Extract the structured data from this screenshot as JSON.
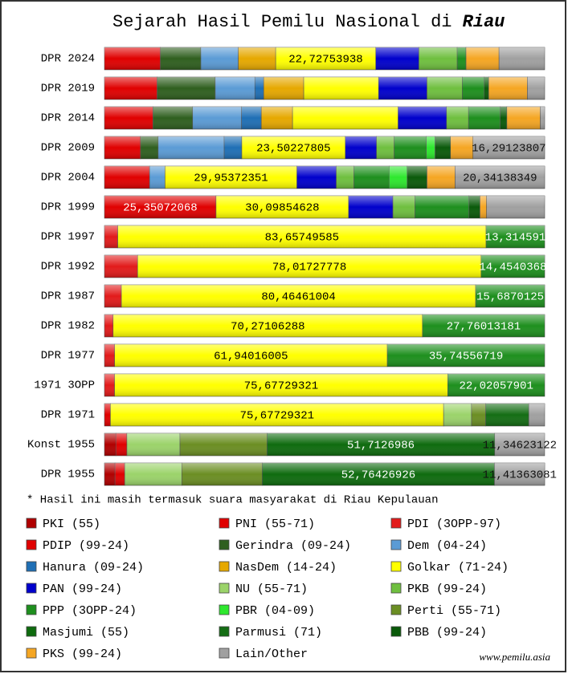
{
  "chart_data": {
    "type": "stacked-bar-horizontal",
    "title": "Sejarah Hasil Pemilu Nasional di",
    "title_region": "Riau",
    "footnote": "* Hasil ini masih termasuk suara masyarakat di Riau Kepulauan",
    "source": "www.pemilu.asia",
    "xlim": [
      0,
      100
    ],
    "categories": [
      "DPR 2024",
      "DPR 2019",
      "DPR 2014",
      "DPR 2009",
      "DPR 2004",
      "DPR 1999",
      "DPR 1997",
      "DPR 1992",
      "DPR 1987",
      "DPR 1982",
      "DPR 1977",
      "1971 3OPP",
      "DPR 1971",
      "Konst 1955",
      "DPR 1955"
    ],
    "series": [
      {
        "name": "PKI (55)",
        "color": "#b00000",
        "values": [
          null,
          null,
          null,
          null,
          null,
          null,
          null,
          null,
          null,
          null,
          null,
          null,
          null,
          2.6,
          2.4
        ]
      },
      {
        "name": "PNI (55-71)",
        "color": "#e00000",
        "values": [
          null,
          null,
          null,
          null,
          null,
          null,
          null,
          null,
          null,
          null,
          null,
          null,
          1.36,
          2.5,
          2.2
        ]
      },
      {
        "name": "PDI (3OPP-97)",
        "color": "#e21b1b",
        "values": [
          null,
          null,
          null,
          null,
          null,
          null,
          3.03,
          7.53,
          3.85,
          1.97,
          2.31,
          2.3,
          null,
          null,
          null
        ]
      },
      {
        "name": "PDIP (99-24)",
        "color": "#e00000",
        "values": [
          12.7,
          11.97,
          11.03,
          8.2,
          10.26,
          25.35072068,
          null,
          null,
          null,
          null,
          null,
          null,
          null,
          null,
          null
        ],
        "value_labels": [
          null,
          null,
          null,
          null,
          null,
          "25,35072068",
          null,
          null,
          null,
          null,
          null,
          null,
          null,
          null,
          null
        ]
      },
      {
        "name": "Gerindra (09-24)",
        "color": "#2f5f1f",
        "values": [
          9.2,
          13.2,
          9,
          4,
          null,
          null,
          null,
          null,
          null,
          null,
          null,
          null,
          null,
          null,
          null
        ]
      },
      {
        "name": "Dem (04-24)",
        "color": "#5b9bd5",
        "values": [
          8.5,
          9,
          11.1,
          15,
          3.5,
          null,
          null,
          null,
          null,
          null,
          null,
          null,
          null,
          null,
          null
        ]
      },
      {
        "name": "Hanura (09-24)",
        "color": "#1f6fb5",
        "values": [
          null,
          2,
          4.5,
          4,
          null,
          null,
          null,
          null,
          null,
          null,
          null,
          null,
          null,
          null,
          null
        ]
      },
      {
        "name": "NasDem (14-24)",
        "color": "#e6a800",
        "values": [
          8.5,
          9.1,
          7.1,
          null,
          null,
          null,
          null,
          null,
          null,
          null,
          null,
          null,
          null,
          null,
          null
        ]
      },
      {
        "name": "Golkar (71-24)",
        "color": "#ffff00",
        "values": [
          22.72753938,
          17,
          23.97,
          23.50227805,
          29.95372351,
          30.09854628,
          83.65749585,
          78.01727778,
          80.46461004,
          70.27106288,
          61.94016005,
          75.67729321,
          75.67729321,
          null,
          null
        ],
        "value_labels": [
          "22,72753938",
          null,
          null,
          "23,50227805",
          "29,95372351",
          "30,09854628",
          "83,65749585",
          "78,01727778",
          "80,46461004",
          "70,27106288",
          "61,94016005",
          "75,67729321",
          "75,67729321",
          null,
          null
        ]
      },
      {
        "name": "PAN (99-24)",
        "color": "#0000cc",
        "values": [
          9.8,
          11,
          11,
          7.1,
          8.95,
          10.08,
          null,
          null,
          null,
          null,
          null,
          null,
          null,
          null,
          null
        ]
      },
      {
        "name": "NU (55-71)",
        "color": "#9bd36a",
        "values": [
          null,
          null,
          null,
          null,
          null,
          null,
          null,
          null,
          null,
          null,
          null,
          null,
          6.35,
          12.06,
          12.97
        ]
      },
      {
        "name": "PKB (99-24)",
        "color": "#6fbf3f",
        "values": [
          8.7,
          8,
          5,
          4,
          4,
          5,
          null,
          null,
          null,
          null,
          null,
          null,
          null,
          null,
          null
        ]
      },
      {
        "name": "PPP (3OPP-24)",
        "color": "#1e8f1e",
        "values": [
          2,
          5,
          7.2,
          7.3,
          8,
          12.27,
          13.314591,
          14.4540368,
          15.6870125,
          27.76013181,
          35.74556719,
          22.02057901,
          null,
          null,
          null
        ],
        "value_labels": [
          null,
          null,
          null,
          null,
          null,
          null,
          "13,314591",
          "14,4540368",
          "15,6870125",
          "27,76013181",
          "35,74556719",
          "22,02057901",
          null,
          null,
          null
        ]
      },
      {
        "name": "PBR (04-09)",
        "color": "#2ee82e",
        "values": [
          null,
          null,
          null,
          2,
          4.1,
          null,
          null,
          null,
          null,
          null,
          null,
          null,
          null,
          null,
          null
        ]
      },
      {
        "name": "Perti (55-71)",
        "color": "#6b8e23",
        "values": [
          null,
          null,
          null,
          null,
          null,
          null,
          null,
          null,
          null,
          null,
          null,
          null,
          3.2,
          19.77,
          18.26
        ]
      },
      {
        "name": "Masjumi (55)",
        "color": "#0e6b0e",
        "values": [
          null,
          null,
          null,
          null,
          null,
          null,
          null,
          null,
          null,
          null,
          null,
          null,
          null,
          51.7126986,
          52.76426926
        ],
        "value_labels": [
          null,
          null,
          null,
          null,
          null,
          null,
          null,
          null,
          null,
          null,
          null,
          null,
          null,
          "51,7126986",
          "52,76426926"
        ]
      },
      {
        "name": "Parmusi (71)",
        "color": "#146d14",
        "values": [
          null,
          null,
          null,
          null,
          null,
          null,
          null,
          null,
          null,
          null,
          null,
          null,
          9.8,
          null,
          null
        ]
      },
      {
        "name": "PBB (99-24)",
        "color": "#0a5a0a",
        "values": [
          null,
          1,
          1.5,
          3.5,
          4.5,
          2.5,
          null,
          null,
          null,
          null,
          null,
          null,
          null,
          null,
          null
        ]
      },
      {
        "name": "PKS (99-24)",
        "color": "#f5a623",
        "values": [
          7.5,
          8.8,
          7.6,
          5.11,
          6.4,
          1.5,
          null,
          null,
          null,
          null,
          null,
          null,
          null,
          null,
          null
        ]
      },
      {
        "name": "Lain/Other",
        "color": "#a0a0a0",
        "values": [
          10.37,
          3.93,
          1,
          16.29123807,
          20.34138349,
          13.2,
          null,
          null,
          null,
          null,
          null,
          null,
          3.61,
          11.34623122,
          11.41363081
        ],
        "value_labels": [
          null,
          null,
          null,
          "16,29123807",
          "20,34138349",
          null,
          null,
          null,
          null,
          null,
          null,
          null,
          null,
          "11,34623122",
          "11,41363081"
        ]
      }
    ]
  }
}
